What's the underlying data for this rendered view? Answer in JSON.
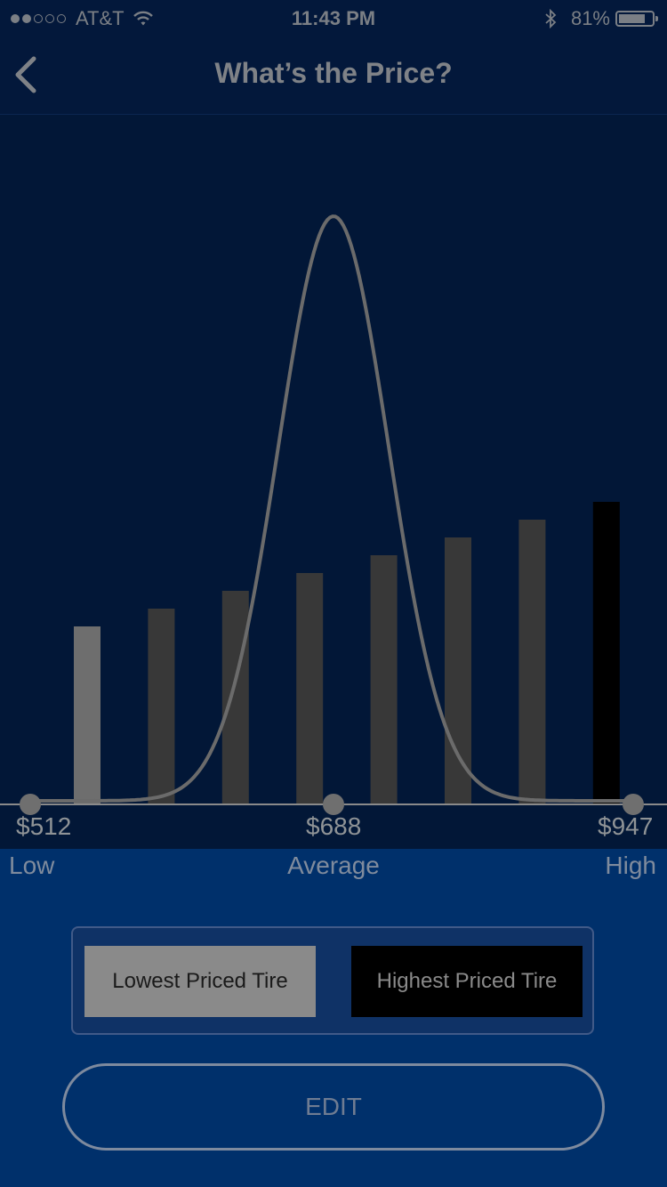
{
  "status_bar": {
    "carrier": "AT&T",
    "time": "11:43 PM",
    "battery": "81%",
    "battery_level": 0.81,
    "signal_bars_filled": 2,
    "signal_bars_total": 5
  },
  "nav": {
    "title": "What’s the Price?",
    "back_icon": "chevron-left-icon"
  },
  "chart_data": {
    "type": "bar",
    "bars": [
      {
        "value": 200,
        "kind": "lowest",
        "color": "#6e6e6e"
      },
      {
        "value": 220,
        "kind": "normal",
        "color": "#383838"
      },
      {
        "value": 240,
        "kind": "normal",
        "color": "#383838"
      },
      {
        "value": 260,
        "kind": "normal",
        "color": "#383838"
      },
      {
        "value": 280,
        "kind": "normal",
        "color": "#383838"
      },
      {
        "value": 300,
        "kind": "normal",
        "color": "#383838"
      },
      {
        "value": 320,
        "kind": "normal",
        "color": "#383838"
      },
      {
        "value": 340,
        "kind": "highest",
        "color": "#000000"
      }
    ],
    "markers": [
      {
        "price": "$512",
        "label": "Low"
      },
      {
        "price": "$688",
        "label": "Average"
      },
      {
        "price": "$947",
        "label": "High"
      }
    ],
    "curve_color": "#6b6b6b",
    "axis_color": "#8a8a8a"
  },
  "legend": {
    "lowest_label": "Lowest Priced Tire",
    "highest_label": "Highest Priced Tire"
  },
  "edit": {
    "label": "EDIT"
  }
}
